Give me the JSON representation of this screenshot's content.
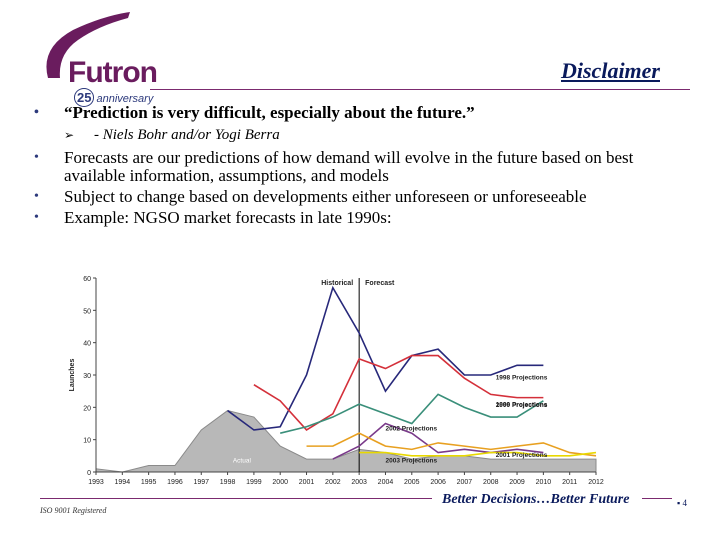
{
  "logo": {
    "word": "Futron",
    "badge_number": "25",
    "badge_text": "anniversary"
  },
  "slide": {
    "title": "Disclaimer"
  },
  "bullets": [
    "“Prediction is very difficult, especially about the future.”",
    "- Niels Bohr and/or Yogi Berra",
    "Forecasts are our predictions of how demand will evolve in the future based on best available information, assumptions, and models",
    "Subject to change based on developments either unforeseen or unforeseeable",
    "Example: NGSO market forecasts in late 1990s:"
  ],
  "chart_data": {
    "type": "line",
    "ylabel": "Launches",
    "ylim": [
      0,
      60
    ],
    "yticks": [
      0,
      10,
      20,
      30,
      40,
      50,
      60
    ],
    "x": [
      "1993",
      "1994",
      "1995",
      "1996",
      "1997",
      "1998",
      "1999",
      "2000",
      "2001",
      "2002",
      "2003",
      "2004",
      "2005",
      "2006",
      "2007",
      "2008",
      "2009",
      "2010",
      "2011",
      "2012"
    ],
    "section_labels": [
      "Historical",
      "Forecast"
    ],
    "actual": {
      "name": "Actual",
      "values": [
        1,
        0,
        2,
        2,
        13,
        19,
        17,
        8,
        4,
        4,
        7,
        6,
        4,
        5,
        5,
        4,
        4,
        4,
        4,
        4
      ]
    },
    "series": [
      {
        "name": "1998 Projections",
        "color": "#27287a",
        "x": [
          "1998",
          "1999",
          "2000",
          "2001",
          "2002",
          "2003",
          "2004",
          "2005",
          "2006",
          "2007",
          "2008",
          "2009",
          "2010"
        ],
        "values": [
          19,
          13,
          14,
          30,
          57,
          43,
          25,
          36,
          38,
          30,
          30,
          33,
          33
        ]
      },
      {
        "name": "1999 Projections",
        "color": "#d4303a",
        "x": [
          "1999",
          "2000",
          "2001",
          "2002",
          "2003",
          "2004",
          "2005",
          "2006",
          "2007",
          "2008",
          "2009",
          "2010"
        ],
        "values": [
          27,
          22,
          13,
          18,
          35,
          32,
          36,
          36,
          29,
          24,
          23,
          23
        ]
      },
      {
        "name": "2000 Projections",
        "color": "#3a8f7a",
        "x": [
          "2000",
          "2001",
          "2002",
          "2003",
          "2004",
          "2005",
          "2006",
          "2007",
          "2008",
          "2009",
          "2010"
        ],
        "values": [
          12,
          14,
          17,
          21,
          18,
          15,
          24,
          20,
          17,
          17,
          22
        ]
      },
      {
        "name": "2002 Projections",
        "color": "#7a3a8a",
        "x": [
          "2002",
          "2003",
          "2004",
          "2005",
          "2006",
          "2007",
          "2008",
          "2009",
          "2010"
        ],
        "values": [
          4,
          8,
          15,
          12,
          6,
          7,
          6,
          7,
          6
        ]
      },
      {
        "name": "2001 Projections",
        "color": "#e8a020",
        "x": [
          "2001",
          "2002",
          "2003",
          "2004",
          "2005",
          "2006",
          "2007",
          "2008",
          "2009",
          "2010",
          "2011",
          "2012"
        ],
        "values": [
          8,
          8,
          12,
          8,
          7,
          9,
          8,
          7,
          8,
          9,
          6,
          5
        ]
      },
      {
        "name": "2003 Projections",
        "color": "#e8d800",
        "x": [
          "2003",
          "2004",
          "2005",
          "2006",
          "2007",
          "2008",
          "2009",
          "2010",
          "2011",
          "2012"
        ],
        "values": [
          6,
          6,
          5,
          5,
          5,
          6,
          6,
          5,
          5,
          6
        ]
      }
    ]
  },
  "footer": {
    "left": "ISO 9001 Registered",
    "right": "Better Decisions…Better Future",
    "page": "4"
  }
}
